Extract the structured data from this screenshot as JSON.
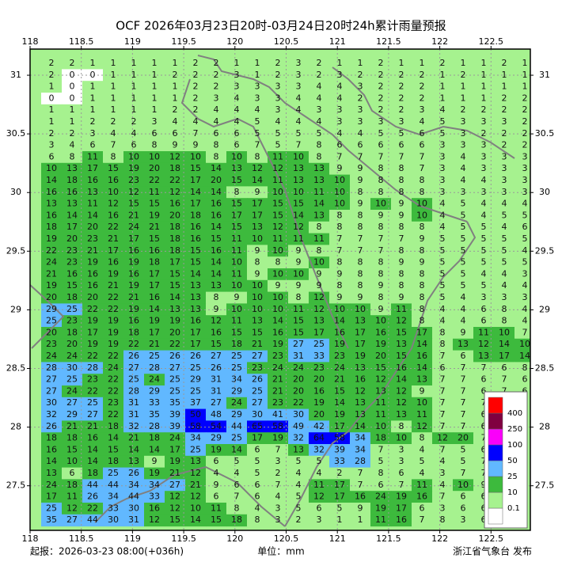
{
  "title": "OCF 2026年03月23日20时-03月24日20时24h累计雨量预报",
  "map": {
    "xlim": [
      118,
      122.884
    ],
    "ylim": [
      27.12,
      31.223
    ],
    "xticks": [
      118,
      118.5,
      119,
      119.5,
      120,
      120.5,
      121,
      121.5,
      122,
      122.5
    ],
    "yticks": [
      27.5,
      28,
      28.5,
      29,
      29.5,
      30,
      30.5,
      31
    ]
  },
  "grid": {
    "values": [
      [
        2,
        2,
        1,
        1,
        1,
        1,
        1,
        2,
        2,
        1,
        1,
        2,
        3,
        2,
        1,
        1,
        2,
        1,
        1,
        2,
        1,
        1,
        2,
        1
      ],
      [
        2,
        0,
        0,
        1,
        1,
        1,
        2,
        2,
        2,
        3,
        1,
        2,
        3,
        2,
        3,
        2,
        2,
        2,
        2,
        1,
        2,
        1,
        1,
        1
      ],
      [
        1,
        0,
        1,
        1,
        1,
        1,
        1,
        2,
        2,
        3,
        3,
        3,
        3,
        4,
        4,
        3,
        2,
        2,
        2,
        1,
        1,
        1,
        1,
        1
      ],
      [
        0,
        0,
        1,
        1,
        1,
        1,
        1,
        2,
        3,
        4,
        3,
        3,
        4,
        4,
        4,
        2,
        2,
        2,
        2,
        1,
        1,
        1,
        2,
        2
      ],
      [
        1,
        1,
        1,
        1,
        1,
        1,
        2,
        2,
        4,
        4,
        4,
        3,
        4,
        3,
        3,
        3,
        2,
        2,
        3,
        4,
        2,
        2,
        2,
        2
      ],
      [
        1,
        1,
        2,
        2,
        2,
        3,
        4,
        4,
        4,
        4,
        5,
        4,
        4,
        4,
        3,
        3,
        3,
        3,
        4,
        5,
        3,
        3,
        3,
        2
      ],
      [
        2,
        2,
        3,
        4,
        4,
        6,
        6,
        7,
        6,
        6,
        5,
        5,
        5,
        5,
        4,
        4,
        5,
        5,
        6,
        5,
        3,
        2,
        2,
        2
      ],
      [
        3,
        4,
        6,
        7,
        6,
        8,
        9,
        9,
        8,
        6,
        7,
        5,
        7,
        8,
        6,
        6,
        6,
        6,
        6,
        3,
        3,
        3,
        2,
        2
      ],
      [
        6,
        8,
        11,
        8,
        10,
        10,
        12,
        10,
        8,
        10,
        8,
        11,
        10,
        8,
        7,
        7,
        7,
        7,
        7,
        3,
        4,
        3,
        3,
        3
      ],
      [
        10,
        13,
        17,
        15,
        19,
        20,
        18,
        15,
        14,
        13,
        12,
        12,
        13,
        13,
        9,
        9,
        8,
        8,
        7,
        3,
        4,
        3,
        3,
        3
      ],
      [
        14,
        18,
        16,
        16,
        23,
        22,
        22,
        17,
        20,
        15,
        14,
        11,
        13,
        13,
        10,
        9,
        8,
        8,
        8,
        3,
        4,
        4,
        3,
        3
      ],
      [
        16,
        16,
        13,
        10,
        12,
        11,
        12,
        14,
        14,
        8,
        9,
        10,
        10,
        11,
        10,
        8,
        8,
        8,
        8,
        3,
        3,
        3,
        3,
        3
      ],
      [
        13,
        13,
        11,
        12,
        15,
        15,
        16,
        17,
        16,
        15,
        17,
        15,
        15,
        14,
        10,
        9,
        10,
        9,
        10,
        4,
        5,
        4,
        4,
        4
      ],
      [
        16,
        14,
        14,
        16,
        21,
        19,
        20,
        18,
        16,
        17,
        17,
        15,
        14,
        13,
        8,
        8,
        9,
        9,
        10,
        4,
        5,
        4,
        5,
        5
      ],
      [
        18,
        17,
        20,
        22,
        24,
        21,
        18,
        16,
        14,
        15,
        13,
        12,
        12,
        8,
        8,
        8,
        8,
        8,
        8,
        4,
        5,
        5,
        4,
        6
      ],
      [
        19,
        20,
        23,
        21,
        17,
        15,
        18,
        16,
        15,
        11,
        10,
        11,
        11,
        11,
        7,
        7,
        7,
        7,
        9,
        5,
        5,
        5,
        5,
        5
      ],
      [
        22,
        23,
        21,
        17,
        16,
        16,
        18,
        15,
        16,
        11,
        9,
        10,
        9,
        8,
        7,
        7,
        7,
        8,
        8,
        5,
        5,
        5,
        5,
        4
      ],
      [
        24,
        23,
        19,
        16,
        19,
        18,
        17,
        15,
        14,
        10,
        8,
        8,
        9,
        10,
        8,
        8,
        8,
        9,
        9,
        5,
        5,
        5,
        5,
        5
      ],
      [
        21,
        16,
        16,
        19,
        16,
        17,
        15,
        14,
        14,
        11,
        9,
        10,
        10,
        9,
        9,
        8,
        8,
        8,
        8,
        5,
        5,
        4,
        4,
        3
      ],
      [
        19,
        15,
        16,
        21,
        19,
        17,
        15,
        13,
        13,
        10,
        10,
        9,
        9,
        9,
        8,
        8,
        9,
        8,
        8,
        5,
        5,
        5,
        4,
        4
      ],
      [
        20,
        18,
        20,
        22,
        21,
        16,
        14,
        13,
        8,
        9,
        10,
        10,
        8,
        12,
        9,
        9,
        8,
        9,
        8,
        5,
        4,
        3,
        3,
        3
      ],
      [
        29,
        25,
        22,
        22,
        19,
        14,
        13,
        13,
        9,
        10,
        10,
        10,
        11,
        12,
        10,
        10,
        9,
        11,
        8,
        4,
        4,
        6,
        8,
        4
      ],
      [
        25,
        23,
        19,
        19,
        16,
        19,
        19,
        16,
        12,
        11,
        13,
        14,
        15,
        13,
        14,
        13,
        10,
        12,
        8,
        4,
        4,
        6,
        8,
        4
      ],
      [
        20,
        18,
        17,
        19,
        18,
        17,
        20,
        17,
        16,
        15,
        15,
        16,
        15,
        17,
        16,
        17,
        16,
        15,
        17,
        8,
        9,
        11,
        10,
        7
      ],
      [
        23,
        20,
        19,
        19,
        22,
        21,
        22,
        17,
        15,
        18,
        21,
        19,
        27,
        25,
        19,
        17,
        19,
        13,
        14,
        8,
        13,
        12,
        14,
        10
      ],
      [
        24,
        24,
        22,
        22,
        26,
        25,
        26,
        26,
        27,
        25,
        27,
        23,
        31,
        33,
        23,
        19,
        20,
        15,
        16,
        7,
        6,
        13,
        17,
        14
      ],
      [
        28,
        30,
        28,
        24,
        27,
        28,
        27,
        25,
        26,
        25,
        23,
        24,
        24,
        23,
        24,
        13,
        15,
        16,
        14,
        6,
        7,
        7,
        6,
        8
      ],
      [
        27,
        25,
        23,
        22,
        25,
        24,
        25,
        29,
        31,
        34,
        26,
        21,
        20,
        20,
        21,
        16,
        12,
        14,
        13,
        7,
        7,
        6,
        7,
        6
      ],
      [
        27,
        24,
        22,
        22,
        28,
        29,
        25,
        25,
        31,
        29,
        25,
        21,
        20,
        16,
        15,
        12,
        13,
        12,
        9,
        7,
        7,
        6,
        7,
        6
      ],
      [
        30,
        27,
        25,
        23,
        31,
        33,
        35,
        37,
        27,
        24,
        27,
        23,
        22,
        19,
        14,
        13,
        11,
        12,
        10,
        7,
        7,
        7,
        4,
        4
      ],
      [
        32,
        29,
        27,
        22,
        31,
        35,
        39,
        50,
        48,
        29,
        30,
        41,
        30,
        20,
        19,
        13,
        11,
        13,
        11,
        7,
        7,
        6,
        4,
        4
      ],
      [
        26,
        21,
        21,
        18,
        32,
        28,
        39,
        58,
        54,
        44,
        65,
        58,
        49,
        42,
        17,
        14,
        10,
        8,
        12,
        7,
        7,
        6,
        4,
        5
      ],
      [
        18,
        18,
        16,
        14,
        21,
        18,
        24,
        34,
        29,
        25,
        17,
        19,
        32,
        64,
        58,
        34,
        18,
        10,
        8,
        12,
        20,
        7,
        5,
        5
      ],
      [
        16,
        15,
        14,
        15,
        14,
        14,
        17,
        25,
        19,
        14,
        6,
        7,
        13,
        32,
        39,
        34,
        7,
        3,
        4,
        7,
        5,
        6,
        5,
        5
      ],
      [
        14,
        10,
        14,
        18,
        13,
        9,
        19,
        13,
        6,
        5,
        5,
        3,
        5,
        5,
        33,
        28,
        5,
        3,
        5,
        4,
        5,
        7,
        5,
        5
      ],
      [
        13,
        6,
        18,
        25,
        26,
        19,
        21,
        12,
        4,
        4,
        5,
        2,
        4,
        4,
        2,
        7,
        8,
        6,
        4,
        3,
        7,
        7,
        5,
        5
      ],
      [
        24,
        18,
        44,
        44,
        34,
        34,
        27,
        21,
        9,
        6,
        6,
        7,
        4,
        11,
        17,
        7,
        6,
        7,
        11,
        4,
        10,
        9,
        5,
        5
      ],
      [
        17,
        11,
        26,
        34,
        44,
        33,
        12,
        12,
        6,
        7,
        6,
        4,
        5,
        12,
        17,
        16,
        24,
        19,
        16,
        7,
        6,
        6,
        5,
        5
      ],
      [
        25,
        12,
        22,
        33,
        30,
        16,
        12,
        10,
        11,
        8,
        4,
        3,
        5,
        6,
        5,
        9,
        19,
        17,
        6,
        3,
        6,
        6,
        5,
        5
      ],
      [
        35,
        27,
        44,
        30,
        31,
        12,
        15,
        14,
        15,
        18,
        8,
        3,
        2,
        3,
        1,
        1,
        11,
        16,
        7,
        8,
        3,
        6,
        5,
        5
      ]
    ]
  },
  "legend": {
    "thresholds": [
      0.1,
      10,
      25,
      50,
      100,
      250,
      400
    ],
    "colors": [
      "#ffffff",
      "#a6f28f",
      "#3dba3d",
      "#61b8ff",
      "#0000fe",
      "#fa00fa",
      "#800040",
      "#ff0000"
    ]
  },
  "footer": {
    "issue": "起报：2026-03-23 08:00(+036h)",
    "unit": "单位：mm",
    "publisher": "浙江省气象台 发布"
  }
}
